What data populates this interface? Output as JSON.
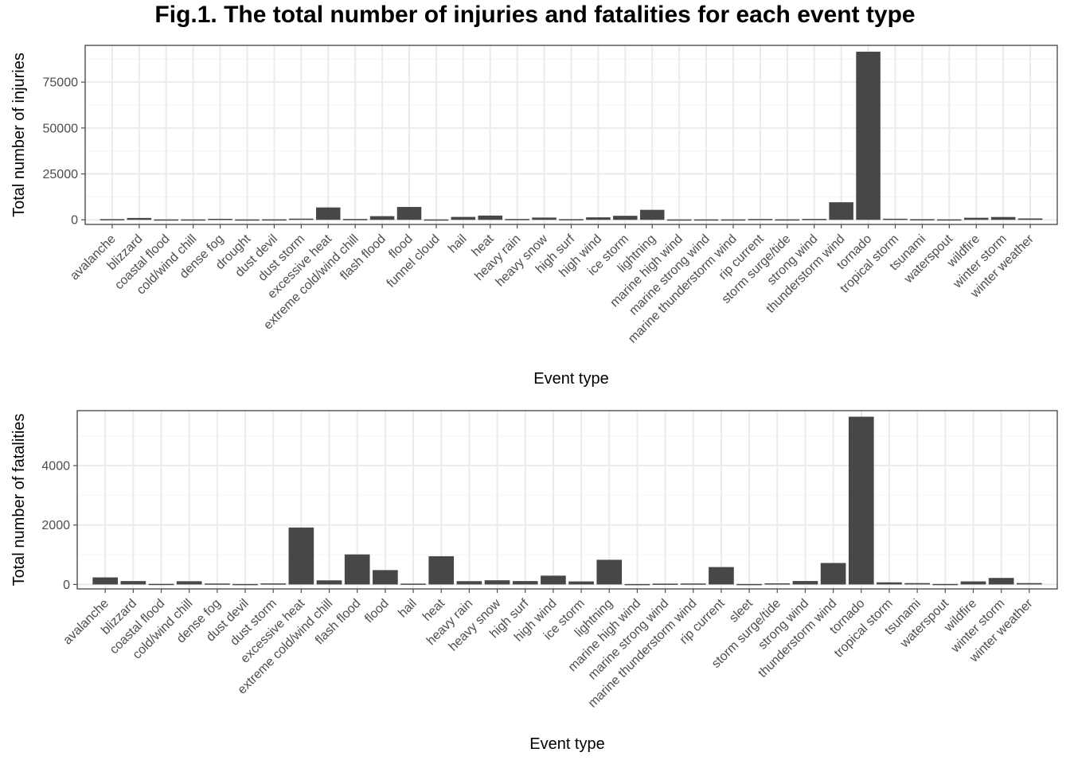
{
  "title": "Fig.1. The total number of injuries and fatalities for each event type",
  "colors": {
    "bar": "#474747",
    "grid_major": "#ebebeb",
    "grid_minor": "#f5f5f5",
    "panel_border": "#333333",
    "tick": "#4d4d4d"
  },
  "chart_data": [
    {
      "type": "bar",
      "xlabel": "Event type",
      "ylabel": "Total number of injuries",
      "ylim": [
        -2500,
        95000
      ],
      "yticks": [
        0,
        25000,
        50000,
        75000
      ],
      "ytick_labels": [
        "0",
        "25000",
        "50000",
        "75000"
      ],
      "grid": true,
      "categories": [
        "avalanche",
        "blizzard",
        "coastal flood",
        "cold/wind chill",
        "dense fog",
        "drought",
        "dust devil",
        "dust storm",
        "excessive heat",
        "extreme cold/wind chill",
        "flash flood",
        "flood",
        "funnel cloud",
        "hail",
        "heat",
        "heavy rain",
        "heavy snow",
        "high surf",
        "high wind",
        "ice storm",
        "lightning",
        "marine high wind",
        "marine strong wind",
        "marine thunderstorm wind",
        "rip current",
        "storm surge/tide",
        "strong wind",
        "thunderstorm wind",
        "tornado",
        "tropical storm",
        "tsunami",
        "waterspout",
        "wildfire",
        "winter storm",
        "winter weather"
      ],
      "values": [
        170,
        805,
        7,
        12,
        342,
        4,
        43,
        440,
        6525,
        255,
        1785,
        6789,
        3,
        1371,
        2100,
        251,
        1021,
        152,
        1137,
        1975,
        5230,
        1,
        22,
        26,
        232,
        43,
        301,
        9353,
        91346,
        383,
        129,
        29,
        911,
        1321,
        538
      ]
    },
    {
      "type": "bar",
      "xlabel": "Event type",
      "ylabel": "Total number of fatalities",
      "ylim": [
        -150,
        5850
      ],
      "yticks": [
        0,
        2000,
        4000
      ],
      "ytick_labels": [
        "0",
        "2000",
        "4000"
      ],
      "grid": true,
      "categories": [
        "avalanche",
        "blizzard",
        "coastal flood",
        "cold/wind chill",
        "dense fog",
        "dust devil",
        "dust storm",
        "excessive heat",
        "extreme cold/wind chill",
        "flash flood",
        "flood",
        "hail",
        "heat",
        "heavy rain",
        "heavy snow",
        "high surf",
        "high wind",
        "ice storm",
        "lightning",
        "marine high wind",
        "marine strong wind",
        "marine thunderstorm wind",
        "rip current",
        "sleet",
        "storm surge/tide",
        "strong wind",
        "thunderstorm wind",
        "tornado",
        "tropical storm",
        "tsunami",
        "waterspout",
        "wildfire",
        "winter storm",
        "winter weather"
      ],
      "values": [
        224,
        101,
        6,
        95,
        18,
        2,
        22,
        1903,
        125,
        998,
        470,
        15,
        937,
        98,
        127,
        101,
        283,
        89,
        817,
        1,
        14,
        19,
        572,
        2,
        24,
        103,
        709,
        5633,
        58,
        33,
        3,
        90,
        206,
        33
      ]
    }
  ]
}
